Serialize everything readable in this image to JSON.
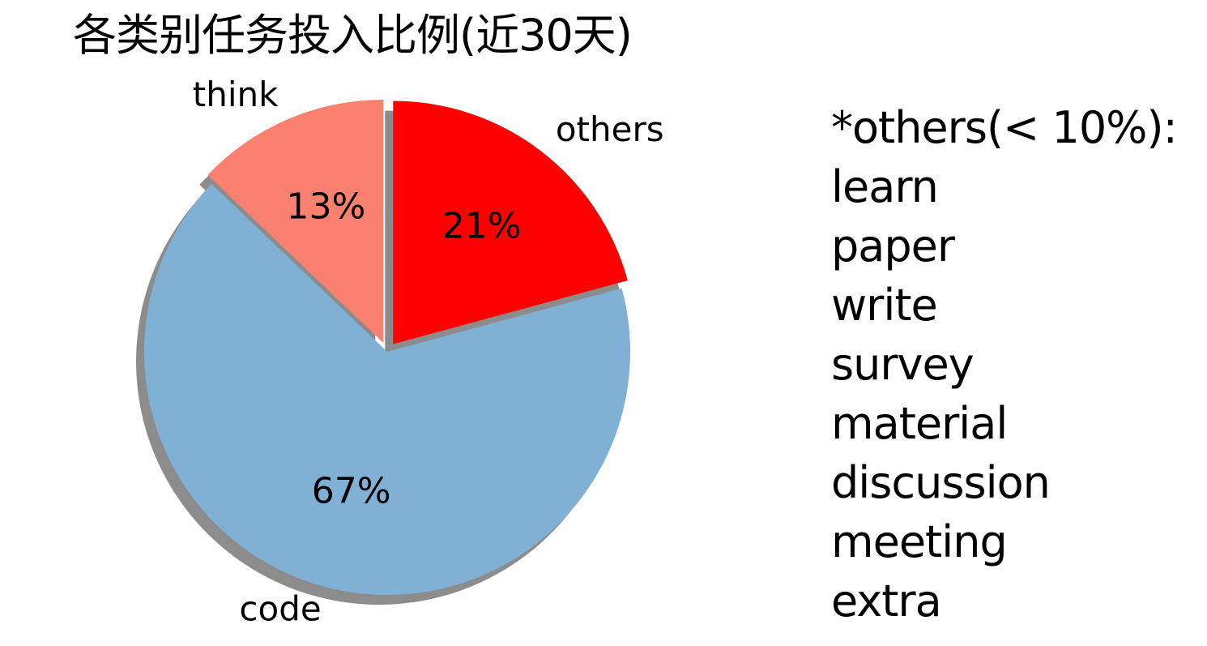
{
  "chart_data": {
    "type": "pie",
    "title": "各类别任务投入比例(近30天)",
    "slices": [
      {
        "label": "others",
        "value": 21,
        "pct_label": "21%",
        "color": "#ff0000",
        "exploded": true
      },
      {
        "label": "code",
        "value": 67,
        "pct_label": "67%",
        "color": "#80b0d4",
        "exploded": false
      },
      {
        "label": "think",
        "value": 13,
        "pct_label": "13%",
        "color": "#fa8070",
        "exploded": true
      }
    ],
    "start_angle_deg": 90,
    "direction": "clockwise",
    "shadow": true
  },
  "note": {
    "lines": [
      "*others(< 10%):",
      "learn",
      "paper",
      "write",
      "survey",
      "material",
      "discussion",
      "meeting",
      "extra"
    ]
  }
}
